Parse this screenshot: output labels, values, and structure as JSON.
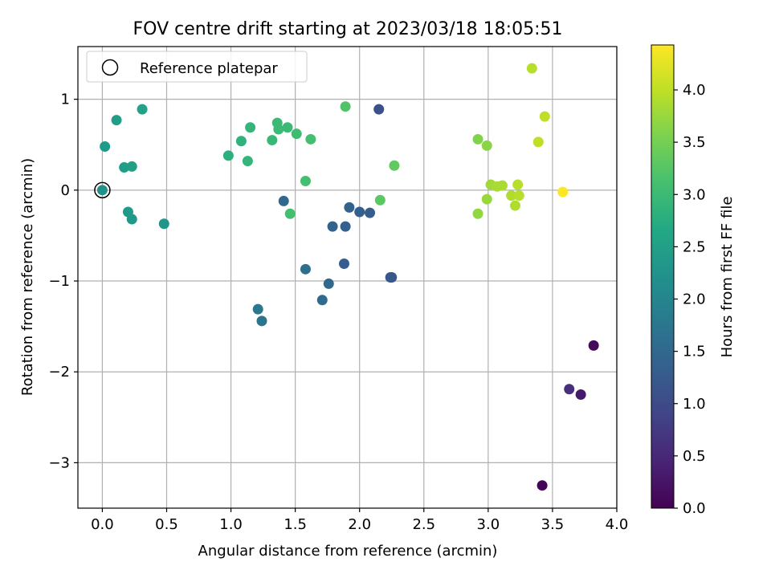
{
  "chart_data": {
    "type": "scatter",
    "title": "FOV centre drift starting at 2023/03/18 18:05:51",
    "xlabel": "Angular distance from reference (arcmin)",
    "ylabel": "Rotation from reference (arcmin)",
    "xlim": [
      -0.19,
      4.0
    ],
    "ylim": [
      -3.5,
      1.58
    ],
    "xticks": [
      0.0,
      0.5,
      1.0,
      1.5,
      2.0,
      2.5,
      3.0,
      3.5,
      4.0
    ],
    "xtick_labels": [
      "0.0",
      "0.5",
      "1.0",
      "1.5",
      "2.0",
      "2.5",
      "3.0",
      "3.5",
      "4.0"
    ],
    "yticks": [
      1,
      0,
      -1,
      -2,
      -3
    ],
    "ytick_labels": [
      "1",
      "0",
      "−1",
      "−2",
      "−3"
    ],
    "grid": true,
    "colormap": "viridis",
    "colorbar": {
      "label": "Hours from first FF file",
      "range": [
        0.0,
        4.43
      ],
      "ticks": [
        0.0,
        0.5,
        1.0,
        1.5,
        2.0,
        2.5,
        3.0,
        3.5,
        4.0
      ],
      "tick_labels": [
        "0.0",
        "0.5",
        "1.0",
        "1.5",
        "2.0",
        "2.5",
        "3.0",
        "3.5",
        "4.0"
      ]
    },
    "legend": {
      "position": "upper-left",
      "entries": [
        {
          "label": "Reference platepar",
          "marker": "open-circle"
        }
      ]
    },
    "reference_point": {
      "x": 0.0,
      "y": 0.0
    },
    "points": [
      {
        "x": 3.42,
        "y": -3.25,
        "c": 0.05
      },
      {
        "x": 3.82,
        "y": -1.71,
        "c": 0.1
      },
      {
        "x": 3.72,
        "y": -2.25,
        "c": 0.3
      },
      {
        "x": 3.63,
        "y": -2.19,
        "c": 0.6
      },
      {
        "x": 2.15,
        "y": 0.89,
        "c": 1.1
      },
      {
        "x": 2.24,
        "y": -0.96,
        "c": 1.2
      },
      {
        "x": 2.25,
        "y": -0.96,
        "c": 1.2
      },
      {
        "x": 1.88,
        "y": -0.81,
        "c": 1.3
      },
      {
        "x": 2.08,
        "y": -0.25,
        "c": 1.3
      },
      {
        "x": 1.89,
        "y": -0.4,
        "c": 1.35
      },
      {
        "x": 2.0,
        "y": -0.24,
        "c": 1.35
      },
      {
        "x": 1.92,
        "y": -0.19,
        "c": 1.4
      },
      {
        "x": 1.79,
        "y": -0.4,
        "c": 1.4
      },
      {
        "x": 1.41,
        "y": -0.12,
        "c": 1.5
      },
      {
        "x": 1.76,
        "y": -1.03,
        "c": 1.5
      },
      {
        "x": 1.71,
        "y": -1.21,
        "c": 1.55
      },
      {
        "x": 1.58,
        "y": -0.87,
        "c": 1.6
      },
      {
        "x": 1.24,
        "y": -1.44,
        "c": 1.7
      },
      {
        "x": 1.21,
        "y": -1.31,
        "c": 1.75
      },
      {
        "x": 0.48,
        "y": -0.37,
        "c": 2.3
      },
      {
        "x": 0.23,
        "y": -0.32,
        "c": 2.35
      },
      {
        "x": 0.2,
        "y": -0.24,
        "c": 2.4
      },
      {
        "x": 0.02,
        "y": 0.48,
        "c": 2.4
      },
      {
        "x": 0.11,
        "y": 0.77,
        "c": 2.45
      },
      {
        "x": 0.17,
        "y": 0.25,
        "c": 2.45
      },
      {
        "x": 0.23,
        "y": 0.26,
        "c": 2.5
      },
      {
        "x": 0.31,
        "y": 0.89,
        "c": 2.55
      },
      {
        "x": 0.98,
        "y": 0.38,
        "c": 2.8
      },
      {
        "x": 1.08,
        "y": 0.54,
        "c": 2.85
      },
      {
        "x": 1.13,
        "y": 0.32,
        "c": 2.9
      },
      {
        "x": 1.15,
        "y": 0.69,
        "c": 2.9
      },
      {
        "x": 1.32,
        "y": 0.55,
        "c": 2.95
      },
      {
        "x": 1.36,
        "y": 0.74,
        "c": 3.0
      },
      {
        "x": 1.37,
        "y": 0.67,
        "c": 3.0
      },
      {
        "x": 1.44,
        "y": 0.69,
        "c": 3.0
      },
      {
        "x": 1.51,
        "y": 0.62,
        "c": 3.05
      },
      {
        "x": 1.58,
        "y": 0.1,
        "c": 3.1
      },
      {
        "x": 1.62,
        "y": 0.56,
        "c": 3.1
      },
      {
        "x": 1.46,
        "y": -0.26,
        "c": 3.1
      },
      {
        "x": 1.89,
        "y": 0.92,
        "c": 3.2
      },
      {
        "x": 2.16,
        "y": -0.11,
        "c": 3.3
      },
      {
        "x": 2.27,
        "y": 0.27,
        "c": 3.35
      },
      {
        "x": 2.92,
        "y": 0.56,
        "c": 3.6
      },
      {
        "x": 2.99,
        "y": 0.49,
        "c": 3.65
      },
      {
        "x": 2.92,
        "y": -0.26,
        "c": 3.7
      },
      {
        "x": 2.99,
        "y": -0.1,
        "c": 3.75
      },
      {
        "x": 3.02,
        "y": 0.06,
        "c": 3.8
      },
      {
        "x": 3.07,
        "y": 0.04,
        "c": 3.85
      },
      {
        "x": 3.11,
        "y": 0.05,
        "c": 3.85
      },
      {
        "x": 3.18,
        "y": -0.06,
        "c": 3.9
      },
      {
        "x": 3.21,
        "y": -0.17,
        "c": 3.9
      },
      {
        "x": 3.23,
        "y": 0.06,
        "c": 3.95
      },
      {
        "x": 3.24,
        "y": -0.06,
        "c": 3.95
      },
      {
        "x": 3.34,
        "y": 1.34,
        "c": 3.95
      },
      {
        "x": 3.39,
        "y": 0.53,
        "c": 4.0
      },
      {
        "x": 3.44,
        "y": 0.81,
        "c": 4.0
      },
      {
        "x": 3.58,
        "y": -0.02,
        "c": 4.43
      }
    ]
  }
}
